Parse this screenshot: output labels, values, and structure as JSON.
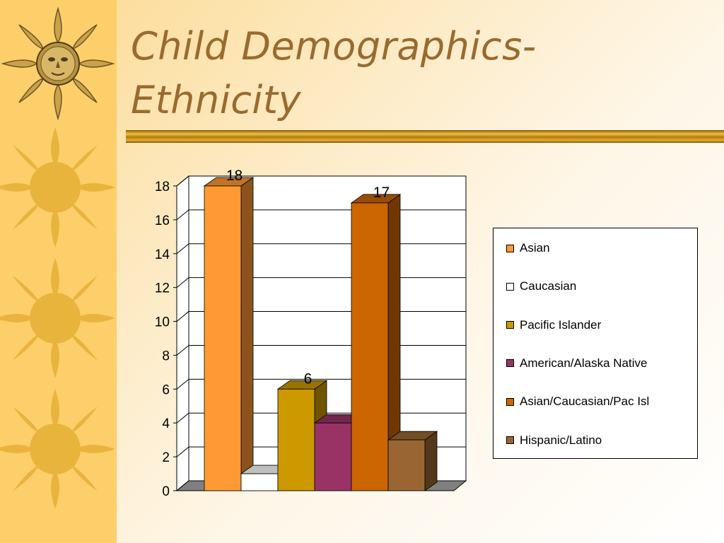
{
  "slide": {
    "title_line1": "Child Demographics-",
    "title_line2": "Ethnicity"
  },
  "colors": {
    "sidebar": "#fdcf6a",
    "title": "#9a6a2e",
    "sun": "#e8b43c"
  },
  "chart_data": {
    "type": "bar",
    "variant": "3d",
    "title": "",
    "xlabel": "",
    "ylabel": "",
    "ylim": [
      0,
      18
    ],
    "y_ticks": [
      0,
      2,
      4,
      6,
      8,
      10,
      12,
      14,
      16,
      18
    ],
    "grid": true,
    "legend_position": "right",
    "series": [
      {
        "name": "Asian",
        "value": 18,
        "label": "18",
        "color": "#ff9933"
      },
      {
        "name": "Caucasian",
        "value": 1,
        "label": "",
        "color": "#ffffff"
      },
      {
        "name": "Pacific Islander",
        "value": 6,
        "label": "6",
        "color": "#cc9900"
      },
      {
        "name": "American/Alaska Native",
        "value": 4,
        "label": "",
        "color": "#993366"
      },
      {
        "name": "Asian/Caucasian/Pac Isl",
        "value": 17,
        "label": "17",
        "color": "#cc6600"
      },
      {
        "name": "Hispanic/Latino",
        "value": 3,
        "label": "",
        "color": "#996633"
      }
    ]
  }
}
